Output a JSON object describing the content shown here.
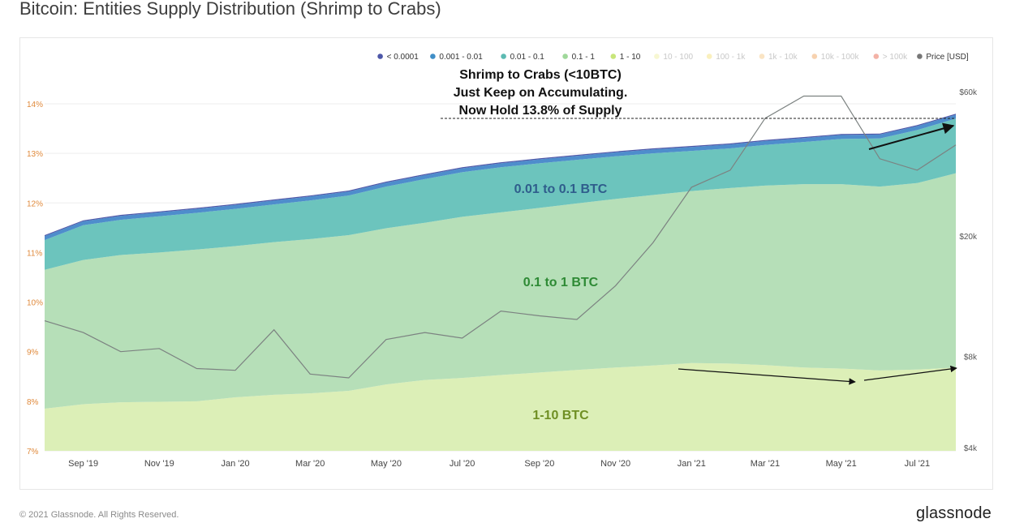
{
  "header": {
    "title": "Bitcoin: Entities Supply Distribution (Shrimp to Crabs)"
  },
  "footer": {
    "copyright": "© 2021 Glassnode. All Rights Reserved.",
    "brand": "glassnode"
  },
  "watermark": "glassnode",
  "colors": {
    "band_1_10": "#dcefb7",
    "band_01_1": "#b6dfb8",
    "band_001_01": "#6cc4bd",
    "band_0001_001": "#4e8dcc",
    "band_lt_00001": "#4d57a8",
    "price_line": "#7c8281",
    "axis_left": "#e08a3c",
    "axis_right": "#555555"
  },
  "chart_data": {
    "type": "area",
    "title": "Bitcoin: Entities Supply Distribution (Shrimp to Crabs)",
    "x_ticks": [
      "Sep '19",
      "Nov '19",
      "Jan '20",
      "Mar '20",
      "May '20",
      "Jul '20",
      "Sep '20",
      "Nov '20",
      "Jan '21",
      "Mar '21",
      "May '21",
      "Jul '21"
    ],
    "y_left": {
      "ticks": [
        "7%",
        "8%",
        "9%",
        "10%",
        "11%",
        "12%",
        "13%",
        "14%"
      ],
      "range": [
        7,
        14
      ]
    },
    "y_right": {
      "scale": "log",
      "ticks": [
        "$4k",
        "$8k",
        "$20k",
        "$60k"
      ],
      "tick_values": [
        4000,
        8000,
        20000,
        60000
      ]
    },
    "legend": {
      "placement": "top-right",
      "entries": [
        {
          "label": "< 0.0001",
          "color": "#4d57a8",
          "active": true
        },
        {
          "label": "0.001 - 0.01",
          "color": "#3f8ec7",
          "active": true
        },
        {
          "label": "0.01 - 0.1",
          "color": "#5cbab2",
          "active": true
        },
        {
          "label": "0.1 - 1",
          "color": "#9fd89a",
          "active": true
        },
        {
          "label": "1 - 10",
          "color": "#c8e67a",
          "active": true
        },
        {
          "label": "10 - 100",
          "color": "#efefa5",
          "active": false
        },
        {
          "label": "100 - 1k",
          "color": "#f6e27c",
          "active": false
        },
        {
          "label": "1k - 10k",
          "color": "#f5c98a",
          "active": false
        },
        {
          "label": "10k - 100k",
          "color": "#f0a560",
          "active": false
        },
        {
          "label": "> 100k",
          "color": "#e8654e",
          "active": false
        },
        {
          "label": "Price [USD]",
          "color": "#777777",
          "active": true
        }
      ]
    },
    "x": [
      "2019-08-01",
      "2019-09-01",
      "2019-10-01",
      "2019-11-01",
      "2019-12-01",
      "2020-01-01",
      "2020-02-01",
      "2020-03-01",
      "2020-04-01",
      "2020-05-01",
      "2020-06-01",
      "2020-07-01",
      "2020-08-01",
      "2020-09-01",
      "2020-10-01",
      "2020-11-01",
      "2020-12-01",
      "2021-01-01",
      "2021-02-01",
      "2021-03-01",
      "2021-04-01",
      "2021-05-01",
      "2021-06-01",
      "2021-07-01",
      "2021-08-01"
    ],
    "series": [
      {
        "name": "1 - 10",
        "unit": "cumulative %",
        "values": [
          7.85,
          7.94,
          7.98,
          7.99,
          8.0,
          8.08,
          8.13,
          8.16,
          8.21,
          8.34,
          8.43,
          8.47,
          8.53,
          8.58,
          8.63,
          8.68,
          8.72,
          8.77,
          8.76,
          8.73,
          8.68,
          8.66,
          8.62,
          8.64,
          8.68
        ]
      },
      {
        "name": "0.1 - 1",
        "unit": "cumulative %",
        "values": [
          10.65,
          10.85,
          10.95,
          11.0,
          11.06,
          11.13,
          11.21,
          11.27,
          11.35,
          11.49,
          11.6,
          11.72,
          11.81,
          11.9,
          11.99,
          12.08,
          12.16,
          12.24,
          12.3,
          12.35,
          12.38,
          12.38,
          12.33,
          12.4,
          12.6
        ]
      },
      {
        "name": "0.01 - 0.1",
        "unit": "cumulative %",
        "values": [
          11.25,
          11.55,
          11.66,
          11.73,
          11.8,
          11.88,
          11.97,
          12.05,
          12.15,
          12.33,
          12.48,
          12.62,
          12.72,
          12.8,
          12.87,
          12.94,
          13.0,
          13.05,
          13.1,
          13.17,
          13.23,
          13.29,
          13.3,
          13.47,
          13.7
        ]
      },
      {
        "name": "0.001 - 0.01",
        "unit": "cumulative %",
        "values": [
          11.33,
          11.63,
          11.74,
          11.81,
          11.88,
          11.96,
          12.05,
          12.13,
          12.23,
          12.41,
          12.56,
          12.7,
          12.8,
          12.88,
          12.95,
          13.02,
          13.08,
          13.13,
          13.18,
          13.25,
          13.31,
          13.37,
          13.38,
          13.55,
          13.78
        ]
      },
      {
        "name": "< 0.0001",
        "unit": "cumulative %",
        "values": [
          11.35,
          11.65,
          11.76,
          11.83,
          11.9,
          11.98,
          12.07,
          12.15,
          12.25,
          12.43,
          12.58,
          12.72,
          12.82,
          12.9,
          12.97,
          13.04,
          13.1,
          13.15,
          13.2,
          13.27,
          13.33,
          13.39,
          13.4,
          13.57,
          13.8
        ]
      },
      {
        "name": "Price [USD]",
        "unit": "USD",
        "values": [
          10500,
          9600,
          8300,
          8500,
          7300,
          7200,
          9800,
          7000,
          6800,
          9100,
          9600,
          9200,
          11300,
          10900,
          10600,
          13700,
          19000,
          29000,
          33000,
          49000,
          58000,
          58000,
          36000,
          33000,
          40000
        ]
      }
    ],
    "annotations": [
      {
        "text": "Shrimp to Crabs (<10BTC)"
      },
      {
        "text": "Just Keep on Accumulating."
      },
      {
        "text": "Now Hold 13.8% of Supply"
      },
      {
        "text": "0.01 to 0.1 BTC"
      },
      {
        "text": "0.1 to 1 BTC"
      },
      {
        "text": "1-10 BTC"
      }
    ]
  }
}
